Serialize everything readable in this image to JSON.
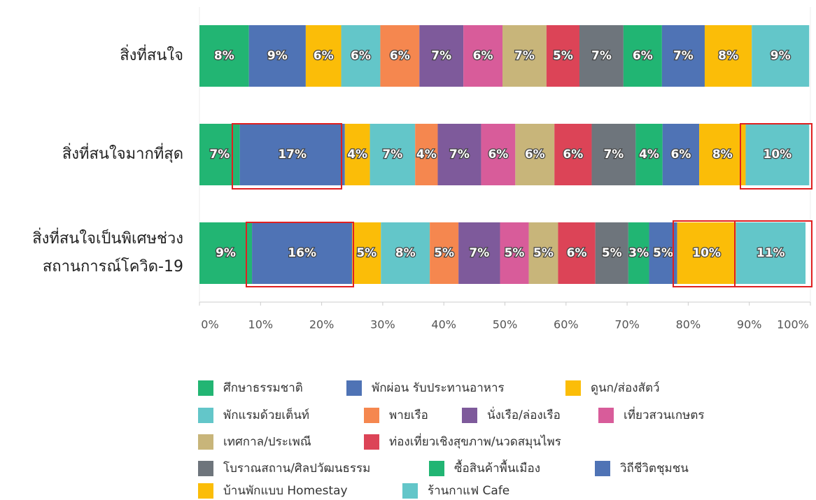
{
  "chart_data": {
    "type": "stacked-bar-horizontal",
    "categories": [
      "สิ่งที่สนใจ",
      "สิ่งที่สนใจมากที่สุด",
      "สิ่งที่สนใจเป็นพิเศษช่วง สถานการณ์โควิด-19"
    ],
    "series": [
      {
        "name": "ศึกษาธรรมชาติ",
        "color": "#22b573",
        "values": [
          8.1,
          6.6,
          8.6
        ],
        "value_labels": [
          "8%",
          "7%",
          "9%"
        ]
      },
      {
        "name": "พักผ่อน รับประทานอาหาร",
        "color": "#4f73b5",
        "values": [
          9.3,
          17.2,
          16.4
        ],
        "value_labels": [
          "9%",
          "17%",
          "16%"
        ]
      },
      {
        "name": "ดูนก/ส่องสัตว์",
        "color": "#fbbd08",
        "values": [
          5.8,
          4.1,
          4.7
        ],
        "value_labels": [
          "6%",
          "4%",
          "5%"
        ]
      },
      {
        "name": "พักแรมด้วยเต็นท์",
        "color": "#63c6c9",
        "values": [
          6.4,
          7.4,
          8.0
        ],
        "value_labels": [
          "6%",
          "7%",
          "8%"
        ]
      },
      {
        "name": "พายเรือ",
        "color": "#f5874f",
        "values": [
          6.4,
          3.7,
          4.7
        ],
        "value_labels": [
          "6%",
          "4%",
          "5%"
        ]
      },
      {
        "name": "นั่งเรือ/ล่องเรือ",
        "color": "#7e5a9b",
        "values": [
          7.2,
          7.1,
          6.8
        ],
        "value_labels": [
          "7%",
          "7%",
          "7%"
        ]
      },
      {
        "name": "เที่ยวสวนเกษตร",
        "color": "#d85c9a",
        "values": [
          6.4,
          5.6,
          4.7
        ],
        "value_labels": [
          "6%",
          "6%",
          "5%"
        ]
      },
      {
        "name": "เทศกาล/ประเพณี",
        "color": "#c8b57a",
        "values": [
          7.2,
          6.4,
          4.8
        ],
        "value_labels": [
          "7%",
          "6%",
          "5%"
        ]
      },
      {
        "name": "ท่องเที่ยวเชิงสุขภาพ/นวดสมุนไพร",
        "color": "#dc4457",
        "values": [
          5.4,
          6.1,
          6.1
        ],
        "value_labels": [
          "5%",
          "6%",
          "6%"
        ]
      },
      {
        "name": "โบราณสถาน/ศิลปวัฒนธรรม",
        "color": "#6e757c",
        "values": [
          7.2,
          7.2,
          5.4
        ],
        "value_labels": [
          "7%",
          "7%",
          "5%"
        ]
      },
      {
        "name": "ซื้อสินค้าพื้นเมือง",
        "color": "#21b573",
        "values": [
          6.3,
          4.4,
          3.4
        ],
        "value_labels": [
          "6%",
          "4%",
          "3%"
        ]
      },
      {
        "name": "วิถีชีวิตชุมชน",
        "color": "#4f73b5",
        "values": [
          7.0,
          6.0,
          4.6
        ],
        "value_labels": [
          "7%",
          "6%",
          "5%"
        ]
      },
      {
        "name": "บ้านพักแบบ Homestay",
        "color": "#fbbd08",
        "values": [
          7.7,
          7.6,
          9.6
        ],
        "value_labels": [
          "8%",
          "8%",
          "10%"
        ]
      },
      {
        "name": "ร้านกาแฟ Cafe",
        "color": "#63c6c9",
        "values": [
          9.4,
          10.4,
          11.4
        ],
        "value_labels": [
          "9%",
          "10%",
          "11%"
        ]
      }
    ],
    "xlim": [
      0,
      100
    ],
    "xticks": [
      {
        "value": 0,
        "label": "0%"
      },
      {
        "value": 10,
        "label": "10%"
      },
      {
        "value": 20,
        "label": "20%"
      },
      {
        "value": 30,
        "label": "30%"
      },
      {
        "value": 40,
        "label": "40%"
      },
      {
        "value": 50,
        "label": "50%"
      },
      {
        "value": 60,
        "label": "60%"
      },
      {
        "value": 70,
        "label": "70%"
      },
      {
        "value": 80,
        "label": "80%"
      },
      {
        "value": 90,
        "label": "90%"
      },
      {
        "value": 100,
        "label": "100%"
      }
    ],
    "legend": "bottom"
  }
}
